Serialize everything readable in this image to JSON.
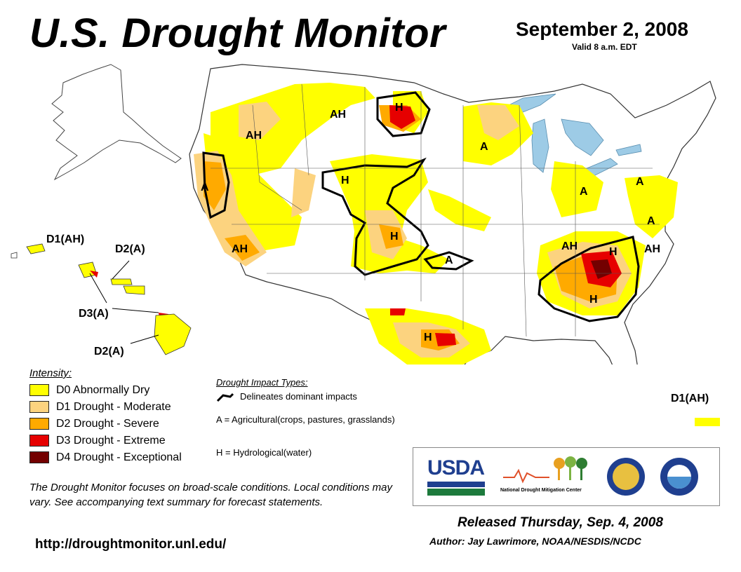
{
  "header": {
    "title": "U.S. Drought Monitor",
    "date": "September 2, 2008",
    "valid": "Valid 8 a.m. EDT"
  },
  "map_labels": {
    "nw_ah": "AH",
    "mt_ah": "AH",
    "nd_h": "H",
    "mn_a": "A",
    "ca_a": "A",
    "ca_ah": "AH",
    "wy_h": "H",
    "co_h": "H",
    "ks_a": "A",
    "tx_h": "H",
    "mi_a": "A",
    "ne_a_top": "A",
    "ne_a_mid": "A",
    "oh_ah": "AH",
    "nc_h": "H",
    "va_ah": "AH",
    "se_h": "H",
    "hi_d1": "D1(AH)",
    "hi_d2a": "D2(A)",
    "hi_d3": "D3(A)",
    "hi_d2b": "D2(A)",
    "pr_d1": "D1(AH)"
  },
  "legend": {
    "title": "Intensity:",
    "items": [
      {
        "label": "D0 Abnormally Dry",
        "color": "#ffff00"
      },
      {
        "label": "D1 Drought - Moderate",
        "color": "#fcd37f"
      },
      {
        "label": "D2 Drought - Severe",
        "color": "#ffaa00"
      },
      {
        "label": "D3 Drought - Extreme",
        "color": "#e60000"
      },
      {
        "label": "D4 Drought - Exceptional",
        "color": "#730000"
      }
    ]
  },
  "impacts": {
    "title": "Drought Impact Types:",
    "line": "Delineates dominant impacts",
    "agricultural": "A = Agricultural(crops, pastures, grasslands)",
    "hydrological": "H = Hydrological(water)"
  },
  "disclaimer": "The Drought Monitor focuses on broad-scale conditions. Local conditions may vary. See accompanying text summary for forecast statements.",
  "url": "http://droughtmonitor.unl.edu/",
  "logos": {
    "usda": "USDA",
    "ndmc_prefix": "National",
    "ndmc_name": "Drought Mitigation Center"
  },
  "footer": {
    "released": "Released Thursday, Sep. 4, 2008",
    "author": "Author: Jay Lawrimore, NOAA/NESDIS/NCDC"
  }
}
